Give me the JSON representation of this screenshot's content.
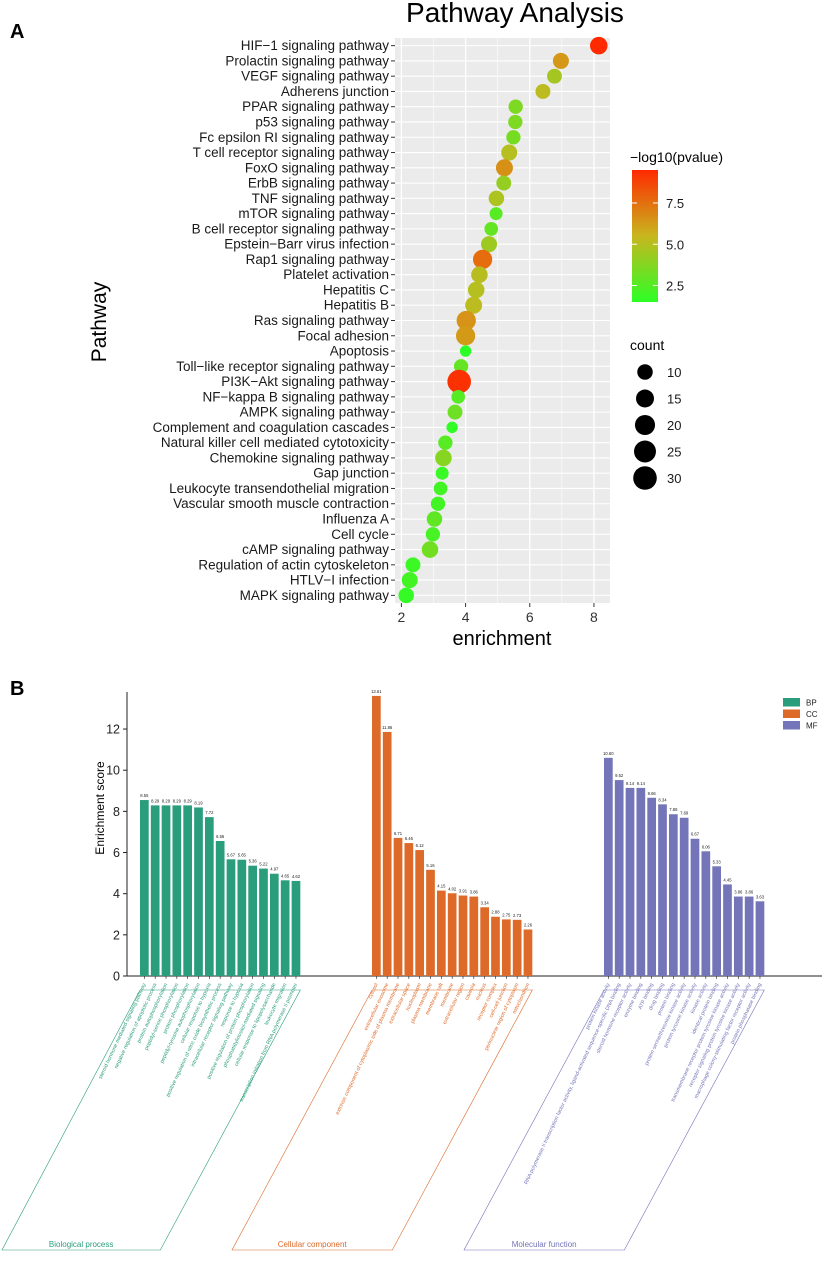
{
  "panels": {
    "a_label": "A",
    "b_label": "B"
  },
  "colors": {
    "grid_bg": "#ebebeb",
    "grid_line": "#ffffff",
    "bp": "#2a9d7c",
    "cc": "#dd6a28",
    "mf": "#7474b9",
    "pval_low": "#2cff26",
    "pval_mid": "#c8b61e",
    "pval_high": "#ff2a00"
  },
  "chart_data": [
    {
      "type": "scatter",
      "title": "Pathway Analysis",
      "xlabel": "enrichment",
      "ylabel": "Pathway",
      "xlim": [
        1.8,
        8.5
      ],
      "xticks": [
        2,
        4,
        6,
        8
      ],
      "grid": true,
      "legend_placement": "right",
      "color_legend_title": "−log10(pvalue)",
      "color_ticks": [
        "7.5",
        "5.0",
        "2.5"
      ],
      "color_tick_values": [
        7.5,
        5.0,
        2.5
      ],
      "color_range": [
        1.5,
        9.5
      ],
      "size_legend_title": "count",
      "size_ticks": [
        "10",
        "15",
        "20",
        "25",
        "30"
      ],
      "size_tick_values": [
        10,
        15,
        20,
        25,
        30
      ],
      "pathways": [
        {
          "name": "HIF−1 signaling pathway",
          "enrichment": 8.15,
          "neglog10p": 9.5,
          "count": 14
        },
        {
          "name": "Prolactin signaling pathway",
          "enrichment": 6.97,
          "neglog10p": 6.4,
          "count": 11
        },
        {
          "name": "VEGF signaling pathway",
          "enrichment": 6.77,
          "neglog10p": 4.6,
          "count": 9
        },
        {
          "name": "Adherens junction",
          "enrichment": 6.41,
          "neglog10p": 5.2,
          "count": 9
        },
        {
          "name": "PPAR signaling pathway",
          "enrichment": 5.56,
          "neglog10p": 3.6,
          "count": 8
        },
        {
          "name": "p53 signaling pathway",
          "enrichment": 5.55,
          "neglog10p": 3.6,
          "count": 8
        },
        {
          "name": "Fc epsilon RI signaling pathway",
          "enrichment": 5.49,
          "neglog10p": 3.4,
          "count": 8
        },
        {
          "name": "T cell receptor signaling pathway",
          "enrichment": 5.36,
          "neglog10p": 5.0,
          "count": 11
        },
        {
          "name": "FoxO signaling pathway",
          "enrichment": 5.21,
          "neglog10p": 6.6,
          "count": 13
        },
        {
          "name": "ErbB signaling pathway",
          "enrichment": 5.19,
          "neglog10p": 4.2,
          "count": 9
        },
        {
          "name": "TNF signaling pathway",
          "enrichment": 4.96,
          "neglog10p": 4.8,
          "count": 10
        },
        {
          "name": "mTOR signaling pathway",
          "enrichment": 4.95,
          "neglog10p": 2.6,
          "count": 6
        },
        {
          "name": "B cell receptor signaling pathway",
          "enrichment": 4.8,
          "neglog10p": 2.9,
          "count": 7
        },
        {
          "name": "Epstein−Barr virus infection",
          "enrichment": 4.73,
          "neglog10p": 4.4,
          "count": 11
        },
        {
          "name": "Rap1 signaling pathway",
          "enrichment": 4.53,
          "neglog10p": 7.6,
          "count": 18
        },
        {
          "name": "Platelet activation",
          "enrichment": 4.43,
          "neglog10p": 5.1,
          "count": 12
        },
        {
          "name": "Hepatitis C",
          "enrichment": 4.33,
          "neglog10p": 5.0,
          "count": 12
        },
        {
          "name": "Hepatitis B",
          "enrichment": 4.25,
          "neglog10p": 5.2,
          "count": 13
        },
        {
          "name": "Ras signaling pathway",
          "enrichment": 4.02,
          "neglog10p": 6.5,
          "count": 18
        },
        {
          "name": "Focal adhesion",
          "enrichment": 4.0,
          "neglog10p": 6.3,
          "count": 18
        },
        {
          "name": "Apoptosis",
          "enrichment": 4.0,
          "neglog10p": 1.5,
          "count": 4
        },
        {
          "name": "Toll−like receptor signaling pathway",
          "enrichment": 3.86,
          "neglog10p": 2.9,
          "count": 8
        },
        {
          "name": "PI3K−Akt signaling pathway",
          "enrichment": 3.8,
          "neglog10p": 9.3,
          "count": 30
        },
        {
          "name": "NF−kappa B signaling pathway",
          "enrichment": 3.77,
          "neglog10p": 2.6,
          "count": 7
        },
        {
          "name": "AMPK signaling pathway",
          "enrichment": 3.67,
          "neglog10p": 3.2,
          "count": 9
        },
        {
          "name": "Complement and coagulation cascades",
          "enrichment": 3.58,
          "neglog10p": 1.6,
          "count": 4
        },
        {
          "name": "Natural killer cell mediated cytotoxicity",
          "enrichment": 3.37,
          "neglog10p": 2.6,
          "count": 8
        },
        {
          "name": "Chemokine signaling pathway",
          "enrichment": 3.31,
          "neglog10p": 3.8,
          "count": 12
        },
        {
          "name": "Gap junction",
          "enrichment": 3.27,
          "neglog10p": 1.8,
          "count": 6
        },
        {
          "name": "Leukocyte transendothelial migration",
          "enrichment": 3.22,
          "neglog10p": 2.1,
          "count": 7
        },
        {
          "name": "Vascular smooth muscle contraction",
          "enrichment": 3.14,
          "neglog10p": 2.1,
          "count": 8
        },
        {
          "name": "Influenza A",
          "enrichment": 3.03,
          "neglog10p": 2.8,
          "count": 10
        },
        {
          "name": "Cell cycle",
          "enrichment": 2.98,
          "neglog10p": 2.2,
          "count": 8
        },
        {
          "name": "cAMP signaling pathway",
          "enrichment": 2.89,
          "neglog10p": 3.3,
          "count": 12
        },
        {
          "name": "Regulation of actin cytoskeleton",
          "enrichment": 2.36,
          "neglog10p": 1.9,
          "count": 9
        },
        {
          "name": "HTLV−I infection",
          "enrichment": 2.26,
          "neglog10p": 2.1,
          "count": 11
        },
        {
          "name": "MAPK signaling pathway",
          "enrichment": 2.15,
          "neglog10p": 1.7,
          "count": 10
        }
      ]
    },
    {
      "type": "bar",
      "ylabel": "Enrichment score",
      "ylim": [
        0,
        13.8
      ],
      "yticks": [
        0,
        2,
        4,
        6,
        8,
        10,
        12
      ],
      "legend_placement": "top-right",
      "legend": [
        "BP",
        "CC",
        "MF"
      ],
      "groups": [
        {
          "key": "BP",
          "name": "Biological process",
          "categories": [
            "steroid hormone mediated signaling pathway",
            "negative regulation of apoptotic process",
            "protein autophosphorylation",
            "peptidyl-serine phosphorylation",
            "protein phosphorylation",
            "peptidyl-tyrosine autophosphorylation",
            "cellular response to hypoxia",
            "positive regulation of nitric oxide biosynthetic process",
            "intracellular receptor signaling pathway",
            "response to hypoxia",
            "positive regulation of protein phosphorylation",
            "phosphatidylinositol-mediated signaling",
            "cellular response to lipopolysaccharide",
            "leukocyte migration",
            "transcription initiation from RNA polymerase II promoter"
          ],
          "values": [
            8.55,
            8.29,
            8.29,
            8.29,
            8.29,
            8.19,
            7.72,
            6.56,
            5.67,
            5.65,
            5.36,
            5.22,
            4.97,
            4.65,
            4.62
          ],
          "labels": [
            "8.55",
            "8.29",
            "8.29",
            "8.29",
            "8.29",
            "8.19",
            "7.72",
            "6.56",
            "5.67",
            "5.65",
            "5.36",
            "5.22",
            "4.97",
            "4.65",
            "4.62"
          ]
        },
        {
          "key": "CC",
          "name": "Cellular component",
          "categories": [
            "cytosol",
            "extracellular exosome",
            "extrinsic component of cytoplasmic side of plasma membrane",
            "extracellular space",
            "nucleoplasm",
            "plasma membrane",
            "membrane raft",
            "membrane",
            "extracellular region",
            "caveola",
            "nucleus",
            "receptor complex",
            "cell-cell junction",
            "perinuclear region of cytoplasm",
            "mitochondrion"
          ],
          "values": [
            13.61,
            11.86,
            6.71,
            6.46,
            6.12,
            5.16,
            4.15,
            4.02,
            3.91,
            3.86,
            3.34,
            2.88,
            2.75,
            2.73,
            2.26
          ],
          "labels": [
            "13.61",
            "11.86",
            "6.71",
            "6.46",
            "6.12",
            "5.16",
            "4.15",
            "4.02",
            "3.91",
            "3.86",
            "3.34",
            "2.88",
            "2.75",
            "2.73",
            "2.26"
          ]
        },
        {
          "key": "MF",
          "name": "Molecular function",
          "categories": [
            "protein kinase activity",
            "RNA polymerase II transcription factor activity, ligand-activated sequence-specific DNA binding",
            "steroid hormone receptor activity",
            "enzyme binding",
            "ATP binding",
            "drug binding",
            "protein binding",
            "protein serine/threonine kinase activity",
            "protein tyrosine kinase activity",
            "kinase activity",
            "identical protein binding",
            "transmembrane receptor protein tyrosine kinase activity",
            "receptor signaling protein tyrosine kinase activity",
            "macrophage colony-stimulating factor receptor activity",
            "protein phosphatase binding"
          ],
          "values": [
            10.6,
            9.52,
            9.14,
            9.14,
            8.66,
            8.34,
            7.86,
            7.69,
            6.67,
            6.06,
            5.33,
            4.45,
            3.86,
            3.86,
            3.63
          ],
          "labels": [
            "10.60",
            "9.52",
            "9.14",
            "9.14",
            "8.66",
            "8.34",
            "7.86",
            "7.69",
            "6.67",
            "6.06",
            "5.33",
            "4.45",
            "3.86",
            "3.86",
            "3.63"
          ]
        }
      ]
    }
  ]
}
